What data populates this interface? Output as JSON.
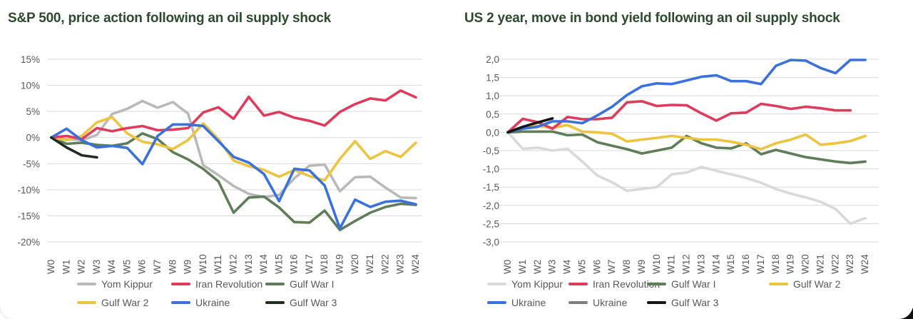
{
  "colors": {
    "title": "#2d4a2e",
    "axis_text": "#595959",
    "gridline": "#d9d9d9",
    "background": "#ffffff"
  },
  "charts": [
    {
      "title": "S&P 500, price action following an oil supply shock",
      "chart_data": {
        "type": "line",
        "x_labels": [
          "W0",
          "W1",
          "W2",
          "W3",
          "W4",
          "W5",
          "W6",
          "W7",
          "W8",
          "W9",
          "W10",
          "W11",
          "W12",
          "W13",
          "W14",
          "W15",
          "W16",
          "W17",
          "W18",
          "W19",
          "W20",
          "W21",
          "W22",
          "W23",
          "W24"
        ],
        "y_ticks": [
          {
            "label": "15%",
            "value": 15
          },
          {
            "label": "10%",
            "value": 10
          },
          {
            "label": "5%",
            "value": 5
          },
          {
            "label": "0%",
            "value": 0
          },
          {
            "label": "-5%",
            "value": -5
          },
          {
            "label": "-10%",
            "value": -10
          },
          {
            "label": "-15%",
            "value": -15
          },
          {
            "label": "-20%",
            "value": -20
          }
        ],
        "ylim": [
          -20,
          15
        ],
        "grid": true,
        "legend_position": "bottom",
        "series": [
          {
            "name": "Yom Kippur",
            "color": "#b9b9b9",
            "values": [
              0,
              -0.3,
              -0.5,
              0.5,
              4.5,
              5.5,
              7.0,
              5.7,
              6.8,
              4.6,
              -5.3,
              -7.2,
              -9.3,
              -10.8,
              -11.4,
              -11.0,
              -7.8,
              -5.4,
              -5.2,
              -10.3,
              -7.6,
              -7.5,
              -9.6,
              -11.5,
              -11.6
            ]
          },
          {
            "name": "Gulf War I",
            "color": "#5f7d58",
            "values": [
              0,
              -1.2,
              -1.0,
              -1.4,
              -1.6,
              -1.1,
              0.8,
              -0.3,
              -2.8,
              -4.2,
              -6.0,
              -8.4,
              -14.4,
              -11.5,
              -11.3,
              -13.4,
              -16.2,
              -16.3,
              -14.0,
              -17.7,
              -16.0,
              -14.4,
              -13.3,
              -12.7,
              -12.9
            ]
          },
          {
            "name": "Gulf War 2",
            "color": "#eec33e",
            "values": [
              0,
              -0.5,
              0.3,
              2.9,
              3.9,
              0.8,
              -0.8,
              -1.3,
              -2.2,
              -0.5,
              2.7,
              -0.3,
              -4.4,
              -5.5,
              -6.2,
              -7.5,
              -6.2,
              -7.4,
              -8.2,
              -4.1,
              -0.7,
              -4.1,
              -2.6,
              -3.7,
              -1.0
            ]
          },
          {
            "name": "Iran Revolution",
            "color": "#e13b5c",
            "values": [
              0,
              0.3,
              -0.3,
              1.8,
              1.2,
              1.8,
              2.2,
              1.4,
              1.5,
              1.8,
              4.8,
              5.8,
              3.6,
              7.8,
              4.2,
              4.9,
              3.8,
              3.2,
              2.3,
              4.9,
              6.4,
              7.5,
              7.1,
              9.0,
              7.7
            ]
          },
          {
            "name": "Ukraine",
            "color": "#3a71dc",
            "values": [
              0,
              1.7,
              -0.5,
              -1.9,
              -1.6,
              -2.0,
              -5.1,
              0.3,
              2.5,
              2.5,
              2.2,
              -0.7,
              -3.7,
              -4.8,
              -7.0,
              -12.2,
              -6.0,
              -6.3,
              -9.2,
              -17.4,
              -11.9,
              -13.3,
              -12.3,
              -12.1,
              -12.8
            ]
          },
          {
            "name": "Gulf War 3",
            "color": "#1f2e1e",
            "values": [
              0,
              -1.9,
              -3.4,
              -3.8
            ]
          }
        ],
        "legend_rows": [
          [
            0,
            3,
            1
          ],
          [
            2,
            4,
            5
          ]
        ]
      }
    },
    {
      "title": "US 2 year, move in bond yield following an oil supply shock",
      "chart_data": {
        "type": "line",
        "x_labels": [
          "W0",
          "W1",
          "W2",
          "W3",
          "W4",
          "W5",
          "W6",
          "W7",
          "W8",
          "W9",
          "W10",
          "W11",
          "W12",
          "W13",
          "W14",
          "W15",
          "W16",
          "W17",
          "W18",
          "W19",
          "W20",
          "W21",
          "W22",
          "W23",
          "W24"
        ],
        "y_ticks": [
          {
            "label": "2,0",
            "value": 2.0
          },
          {
            "label": "1,5",
            "value": 1.5
          },
          {
            "label": "1,0",
            "value": 1.0
          },
          {
            "label": "0,5",
            "value": 0.5
          },
          {
            "label": "0,0",
            "value": 0.0
          },
          {
            "label": "-0,5",
            "value": -0.5
          },
          {
            "label": "-1,0",
            "value": -1.0
          },
          {
            "label": "-1,5",
            "value": -1.5
          },
          {
            "label": "-2,0",
            "value": -2.0
          },
          {
            "label": "-2,5",
            "value": -2.5
          },
          {
            "label": "-3,0",
            "value": -3.0
          }
        ],
        "ylim": [
          -3,
          2
        ],
        "grid": true,
        "legend_position": "bottom",
        "series": [
          {
            "name": "Yom Kippur",
            "color": "#d9d9d9",
            "values": [
              0,
              -0.45,
              -0.42,
              -0.5,
              -0.45,
              -0.8,
              -1.18,
              -1.37,
              -1.6,
              -1.55,
              -1.5,
              -1.15,
              -1.1,
              -0.95,
              -1.05,
              -1.15,
              -1.25,
              -1.38,
              -1.55,
              -1.68,
              -1.78,
              -1.9,
              -2.1,
              -2.5,
              -2.35
            ]
          },
          {
            "name": "Gulf War I",
            "color": "#5f7d58",
            "values": [
              0,
              0.02,
              0.02,
              0.02,
              -0.08,
              -0.06,
              -0.27,
              -0.37,
              -0.46,
              -0.58,
              -0.5,
              -0.42,
              -0.1,
              -0.3,
              -0.42,
              -0.44,
              -0.3,
              -0.6,
              -0.48,
              -0.58,
              -0.68,
              -0.74,
              -0.8,
              -0.84,
              -0.8
            ]
          },
          {
            "name": "Gulf War 2",
            "color": "#eec33e",
            "values": [
              0,
              0.12,
              0.18,
              0.12,
              0.2,
              0.02,
              0.0,
              -0.04,
              -0.25,
              -0.2,
              -0.15,
              -0.1,
              -0.15,
              -0.2,
              -0.2,
              -0.26,
              -0.34,
              -0.46,
              -0.3,
              -0.2,
              -0.06,
              -0.34,
              -0.3,
              -0.24,
              -0.1
            ]
          },
          {
            "name": "Iran Revolution",
            "color": "#e13b5c",
            "values": [
              0,
              0.37,
              0.28,
              0.1,
              0.42,
              0.36,
              0.36,
              0.4,
              0.82,
              0.85,
              0.72,
              0.75,
              0.74,
              0.52,
              0.32,
              0.52,
              0.54,
              0.78,
              0.72,
              0.64,
              0.7,
              0.66,
              0.6,
              0.6
            ]
          },
          {
            "name": "Ukraine",
            "color": "#3a71dc",
            "values": [
              0,
              0.1,
              0.15,
              0.3,
              0.3,
              0.25,
              0.46,
              0.7,
              1.02,
              1.26,
              1.34,
              1.32,
              1.42,
              1.52,
              1.56,
              1.4,
              1.4,
              1.32,
              1.82,
              1.98,
              1.96,
              1.76,
              1.62,
              1.98,
              1.98
            ]
          },
          {
            "name": "Ukraine",
            "color": "#7f7f7f",
            "values": []
          },
          {
            "name": "Gulf War 3",
            "color": "#161616",
            "values": [
              0,
              0.15,
              0.27,
              0.38
            ]
          }
        ],
        "legend_rows": [
          [
            0,
            3,
            1,
            2
          ],
          [
            4,
            5,
            6
          ]
        ]
      }
    }
  ]
}
